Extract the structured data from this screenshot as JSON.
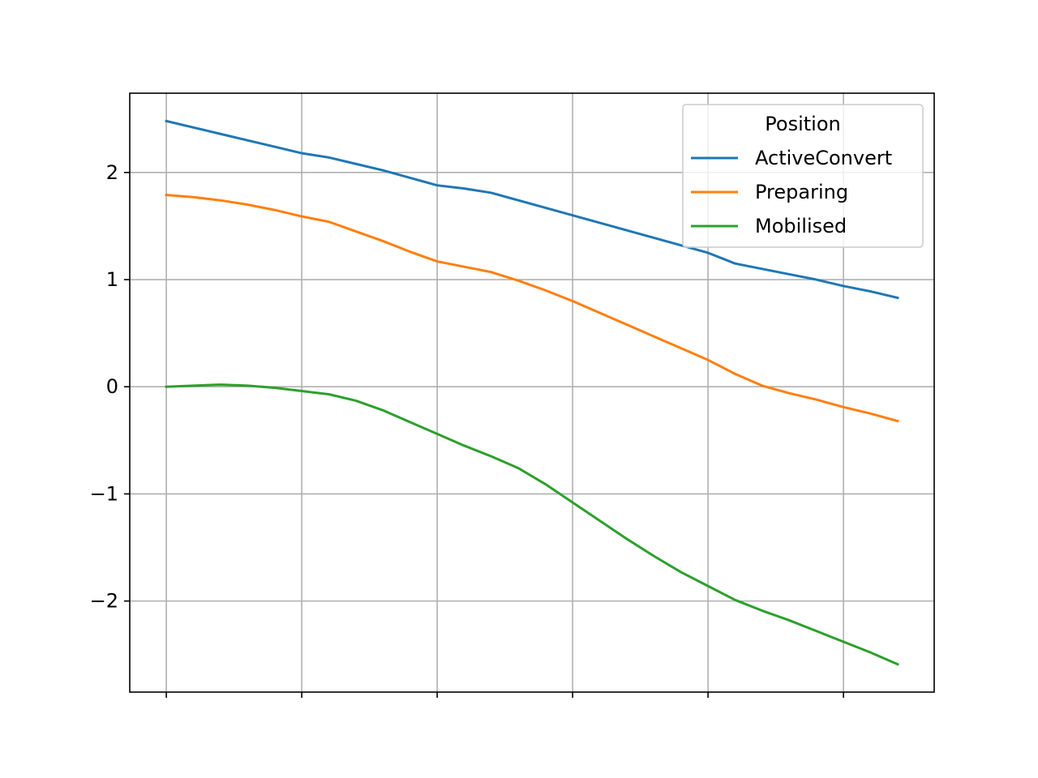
{
  "chart_data": {
    "type": "line",
    "title": "",
    "xlabel": "",
    "ylabel": "",
    "grid": true,
    "x": [
      0,
      0.2,
      0.4,
      0.6,
      0.8,
      1.0,
      1.2,
      1.4,
      1.6,
      1.8,
      2.0,
      2.2,
      2.4,
      2.6,
      2.8,
      3.0,
      3.2,
      3.4,
      3.6,
      3.8,
      4.0,
      4.2,
      4.4,
      4.6,
      4.8,
      5.0,
      5.2,
      5.4
    ],
    "xlim": [
      -0.27,
      5.67
    ],
    "ylim": [
      -2.85,
      2.74
    ],
    "x_ticks": [
      0,
      1,
      2,
      3,
      4,
      5
    ],
    "x_tick_labels": [
      "",
      "",
      "",
      "",
      "",
      ""
    ],
    "y_ticks": [
      -2,
      -1,
      0,
      1,
      2
    ],
    "y_tick_labels": [
      "−2",
      "−1",
      "0",
      "1",
      "2"
    ],
    "legend": {
      "title": "Position",
      "location": "upper right"
    },
    "series": [
      {
        "name": "ActiveConvert",
        "color": "#1f77b4",
        "values": [
          2.48,
          2.42,
          2.36,
          2.3,
          2.24,
          2.18,
          2.14,
          2.08,
          2.02,
          1.95,
          1.88,
          1.85,
          1.81,
          1.74,
          1.67,
          1.6,
          1.53,
          1.46,
          1.39,
          1.32,
          1.25,
          1.15,
          1.1,
          1.05,
          1.0,
          0.94,
          0.89,
          0.83
        ]
      },
      {
        "name": "Preparing",
        "color": "#ff7f0e",
        "values": [
          1.79,
          1.77,
          1.74,
          1.7,
          1.65,
          1.59,
          1.54,
          1.45,
          1.36,
          1.26,
          1.17,
          1.12,
          1.07,
          0.99,
          0.9,
          0.8,
          0.69,
          0.58,
          0.47,
          0.36,
          0.25,
          0.12,
          0.01,
          -0.06,
          -0.12,
          -0.19,
          -0.25,
          -0.32
        ]
      },
      {
        "name": "Mobilised",
        "color": "#2ca02c",
        "values": [
          0.0,
          0.01,
          0.02,
          0.01,
          -0.01,
          -0.04,
          -0.07,
          -0.13,
          -0.22,
          -0.33,
          -0.44,
          -0.55,
          -0.65,
          -0.76,
          -0.91,
          -1.08,
          -1.25,
          -1.42,
          -1.58,
          -1.73,
          -1.86,
          -1.99,
          -2.09,
          -2.18,
          -2.28,
          -2.38,
          -2.48,
          -2.59
        ]
      }
    ]
  }
}
